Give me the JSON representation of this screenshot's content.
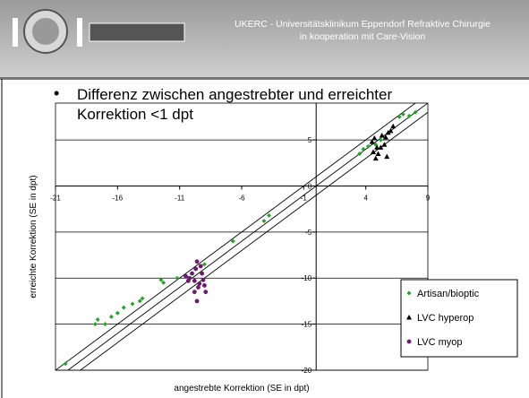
{
  "header": {
    "title": "UKERC - Universitätsklinikum Eppendorf Refraktive Chirurgie",
    "subtitle": "in kooperation mit Care-Vision"
  },
  "bullet": {
    "line1": "Differenz zwischen angestrebter und erreichter",
    "line2": "Korrektion <1 dpt"
  },
  "chart_data": {
    "type": "scatter",
    "xlabel": "angestrebte Korrektion (SE in dpt)",
    "ylabel": "erreichte Korrektion (SE in dpt)",
    "xlim": [
      -21,
      9
    ],
    "xticks": [
      -21,
      -16,
      -11,
      -6,
      -1,
      4,
      9
    ],
    "ylim": [
      -20,
      9
    ],
    "yticks": [
      -20,
      -15,
      -10,
      -5,
      0,
      5
    ],
    "grid": true,
    "legend": "lower right",
    "tolerance": 1,
    "series": [
      {
        "name": "Artisan/bioptic",
        "color": "#2ca02c",
        "marker": "diamond",
        "x": [
          -20.2,
          -17.8,
          -17.6,
          -17,
          -16.5,
          -16,
          -15.5,
          -14.8,
          -14.2,
          -14,
          -12.5,
          -12.3,
          -11.2,
          -10.5,
          -9,
          -6.7,
          -4.2,
          -3.8,
          3.5,
          3.8,
          4.2,
          4.8,
          5.2,
          6.7,
          7,
          7.5,
          8
        ],
        "values": [
          -19.3,
          -15,
          -14.5,
          -15,
          -14.2,
          -13.8,
          -13.2,
          -12.8,
          -12.5,
          -12.2,
          -10.2,
          -10.5,
          -10,
          -9.8,
          -8.5,
          -6,
          -3.8,
          -3.2,
          3.5,
          4,
          4.3,
          4.5,
          5,
          7.5,
          7.8,
          7.6,
          8
        ]
      },
      {
        "name": "LVC hyperop",
        "color": "#000000",
        "marker": "triangle",
        "x": [
          4.5,
          4.6,
          4.8,
          5,
          5.2,
          5.5,
          5.3,
          5.6,
          5.8,
          6,
          4.9,
          5.7,
          6.2,
          4.7
        ],
        "values": [
          4.8,
          3.7,
          3,
          3.5,
          4.2,
          4.5,
          5.5,
          5.3,
          5.8,
          6,
          4.2,
          3.2,
          6.5,
          5.2
        ]
      },
      {
        "name": "LVC myop",
        "color": "#6a1b6a",
        "marker": "circle",
        "x": [
          -10.2,
          -10,
          -9.8,
          -9.6,
          -9.5,
          -9.4,
          -9.2,
          -9,
          -9.8,
          -9.6,
          -10.5,
          -9.3,
          -8.9,
          -9.7,
          -10.3,
          -9.1
        ],
        "values": [
          -10,
          -9.5,
          -10.3,
          -8.2,
          -11,
          -10.6,
          -9.5,
          -10.8,
          -11.5,
          -12.5,
          -9.8,
          -8.7,
          -11.5,
          -9,
          -10.3,
          -10.2
        ]
      }
    ]
  }
}
